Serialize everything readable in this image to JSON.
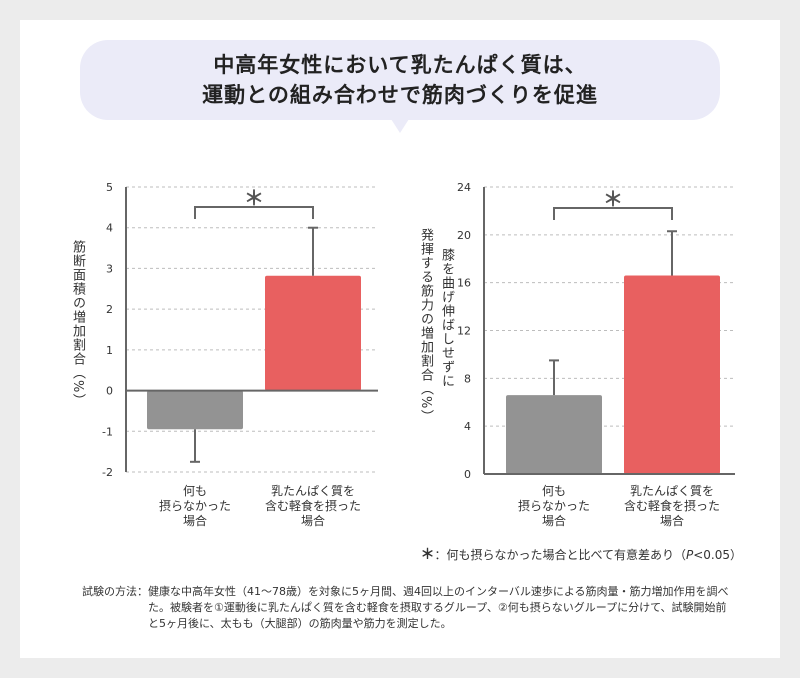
{
  "title_lines": [
    "中高年女性において乳たんぱく質は、",
    "運動との組み合わせで筋肉づくりを促進"
  ],
  "chart_data": [
    {
      "type": "bar",
      "ylabel": "筋断面積の増加割合（%）",
      "categories": [
        "何も\n摂らなかった\n場合",
        "乳たんぱく質を\n含む軽食を摂った\n場合"
      ],
      "values": [
        -0.95,
        2.82
      ],
      "error_upper": [
        -0.95,
        4.0
      ],
      "error_lower": [
        -1.75,
        2.82
      ],
      "colors": [
        "#939393",
        "#e86060"
      ],
      "ylim": [
        -2,
        5
      ],
      "yticks": [
        "-2",
        "-1",
        "0",
        "1",
        "2",
        "3",
        "4",
        "5"
      ],
      "significance": "＊",
      "grid": true
    },
    {
      "type": "bar",
      "ylabel_lines": [
        "膝を曲げ伸ばしせずに",
        "発揮する筋力の増加割合（%）"
      ],
      "categories": [
        "何も\n摂らなかった\n場合",
        "乳たんぱく質を\n含む軽食を摂った\n場合"
      ],
      "values": [
        6.6,
        16.6
      ],
      "error_upper": [
        9.5,
        20.3
      ],
      "error_lower": [
        6.6,
        16.6
      ],
      "colors": [
        "#939393",
        "#e86060"
      ],
      "ylim": [
        0,
        24
      ],
      "yticks": [
        "0",
        "4",
        "8",
        "12",
        "16",
        "20",
        "24"
      ],
      "significance": "＊",
      "grid": true
    }
  ],
  "note": {
    "star": "＊",
    "text": "：何も摂らなかった場合と比べて有意差あり（",
    "p": "P",
    "p_value": "<0.05）"
  },
  "method": {
    "label": "試験の方法：",
    "text": "健康な中高年女性（41〜78歳）を対象に5ヶ月間、週4回以上のインターバル速歩による筋肉量・筋力増加作用を調べた。被験者を①運動後に乳たんぱく質を含む軽食を摂取するグループ、②何も摂らないグループに分けて、試験開始前と5ヶ月後に、太もも（大腿部）の筋肉量や筋力を測定した。"
  }
}
